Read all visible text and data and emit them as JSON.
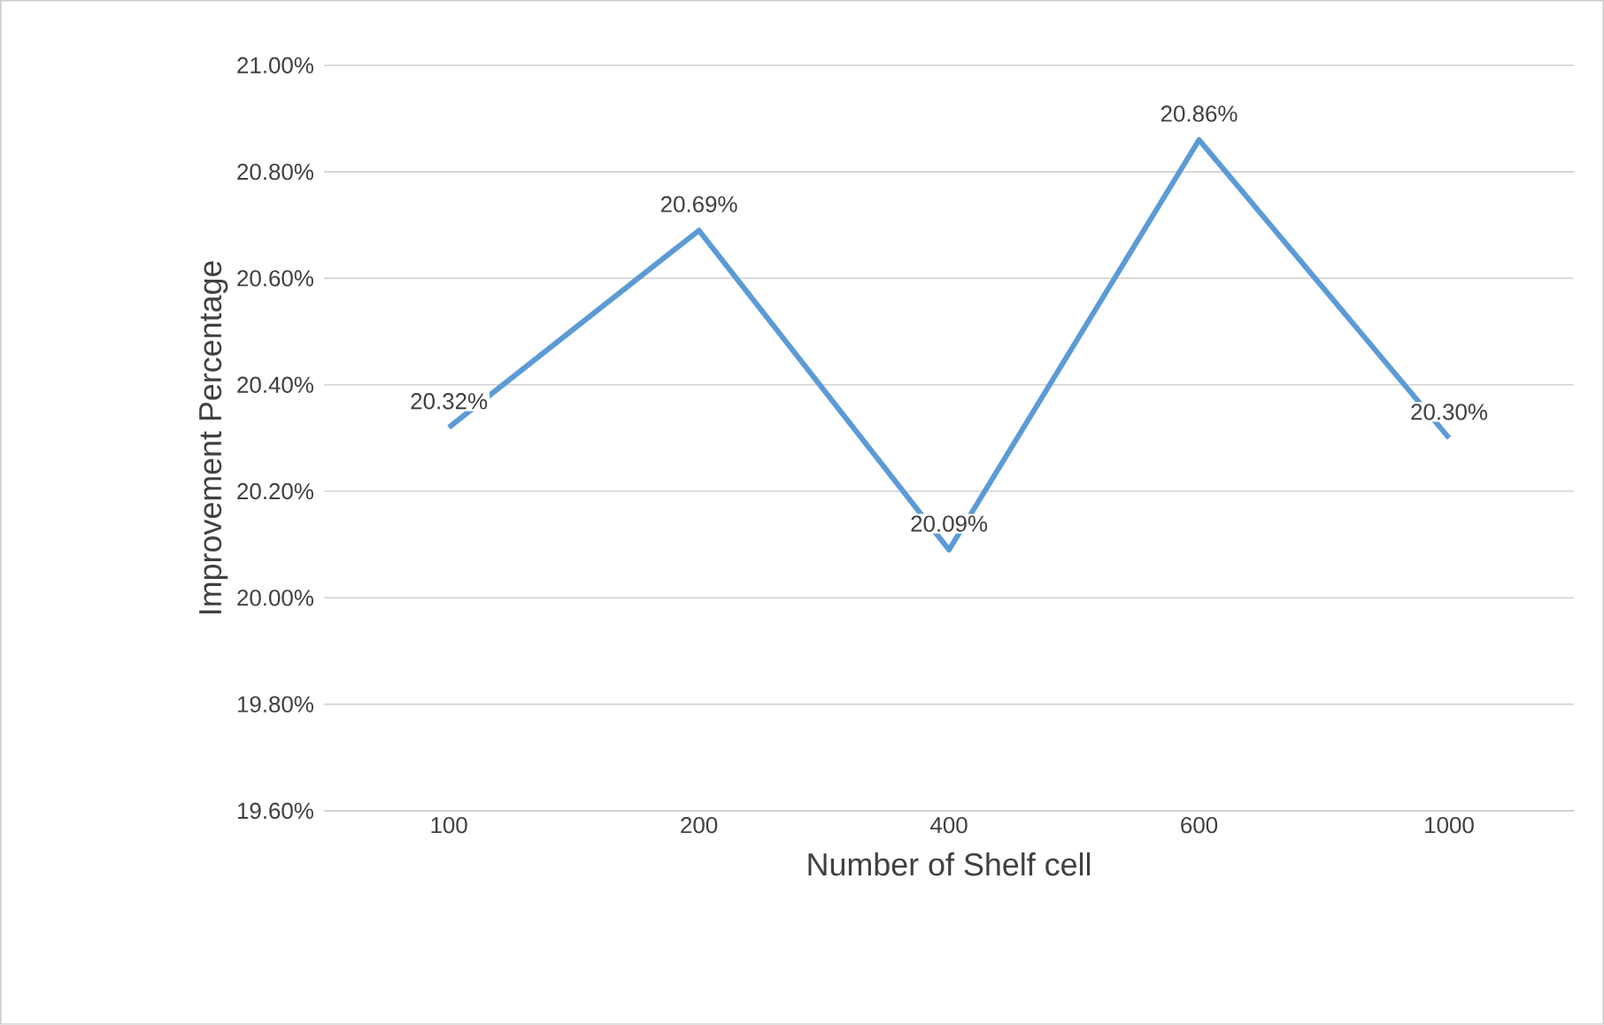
{
  "chart_data": {
    "type": "line",
    "xlabel": "Number of Shelf cell",
    "ylabel": "Improvement Percentage",
    "categories": [
      "100",
      "200",
      "400",
      "600",
      "1000"
    ],
    "series": [
      {
        "color": "#5b9bd5",
        "values": [
          20.32,
          20.69,
          20.09,
          20.86,
          20.3
        ],
        "value_labels": [
          "20.32%",
          "20.69%",
          "20.09%",
          "20.86%",
          "20.30%"
        ]
      }
    ],
    "ylim": [
      19.6,
      21.0
    ],
    "yticks": [
      {
        "value": 19.6,
        "label": "19.60%"
      },
      {
        "value": 19.8,
        "label": "19.80%"
      },
      {
        "value": 20.0,
        "label": "20.00%"
      },
      {
        "value": 20.2,
        "label": "20.20%"
      },
      {
        "value": 20.4,
        "label": "20.40%"
      },
      {
        "value": 20.6,
        "label": "20.60%"
      },
      {
        "value": 20.8,
        "label": "20.80%"
      },
      {
        "value": 21.0,
        "label": "21.00%"
      }
    ],
    "grid": "y",
    "marker": "none",
    "line_style": "solid"
  }
}
